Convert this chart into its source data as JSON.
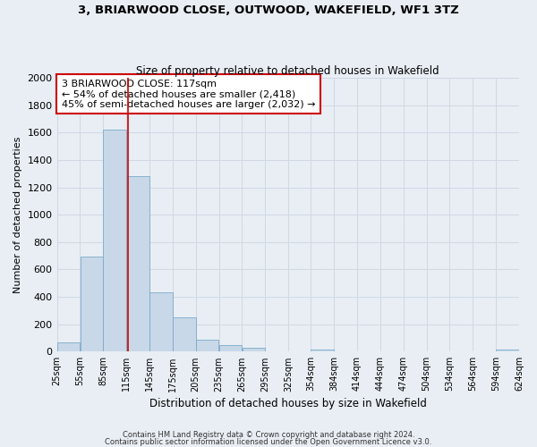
{
  "title": "3, BRIARWOOD CLOSE, OUTWOOD, WAKEFIELD, WF1 3TZ",
  "subtitle": "Size of property relative to detached houses in Wakefield",
  "xlabel": "Distribution of detached houses by size in Wakefield",
  "ylabel": "Number of detached properties",
  "bar_lefts": [
    25,
    55,
    85,
    115,
    145,
    175,
    205,
    235,
    265,
    295,
    325,
    354,
    384,
    414,
    444,
    474,
    504,
    534,
    564,
    594
  ],
  "bar_rights": [
    55,
    85,
    115,
    145,
    175,
    205,
    235,
    265,
    295,
    325,
    354,
    384,
    414,
    444,
    474,
    504,
    534,
    564,
    594,
    624
  ],
  "bar_heights": [
    65,
    695,
    1625,
    1280,
    430,
    250,
    90,
    50,
    30,
    0,
    0,
    15,
    0,
    0,
    0,
    0,
    0,
    0,
    0,
    15
  ],
  "bar_color": "#c8d8e8",
  "bar_edge_color": "#7baac8",
  "vline_x": 117,
  "vline_color": "#cc0000",
  "ylim": [
    0,
    2000
  ],
  "yticks": [
    0,
    200,
    400,
    600,
    800,
    1000,
    1200,
    1400,
    1600,
    1800,
    2000
  ],
  "xtick_labels": [
    "25sqm",
    "55sqm",
    "85sqm",
    "115sqm",
    "145sqm",
    "175sqm",
    "205sqm",
    "235sqm",
    "265sqm",
    "295sqm",
    "325sqm",
    "354sqm",
    "384sqm",
    "414sqm",
    "444sqm",
    "474sqm",
    "504sqm",
    "534sqm",
    "564sqm",
    "594sqm",
    "624sqm"
  ],
  "xtick_positions": [
    25,
    55,
    85,
    115,
    145,
    175,
    205,
    235,
    265,
    295,
    325,
    354,
    384,
    414,
    444,
    474,
    504,
    534,
    564,
    594,
    624
  ],
  "annotation_text": "3 BRIARWOOD CLOSE: 117sqm\n← 54% of detached houses are smaller (2,418)\n45% of semi-detached houses are larger (2,032) →",
  "annotation_box_color": "#ffffff",
  "annotation_box_edgecolor": "#cc0000",
  "grid_color": "#d0d8e4",
  "bg_color": "#e8eef4",
  "footer1": "Contains HM Land Registry data © Crown copyright and database right 2024.",
  "footer2": "Contains public sector information licensed under the Open Government Licence v3.0."
}
